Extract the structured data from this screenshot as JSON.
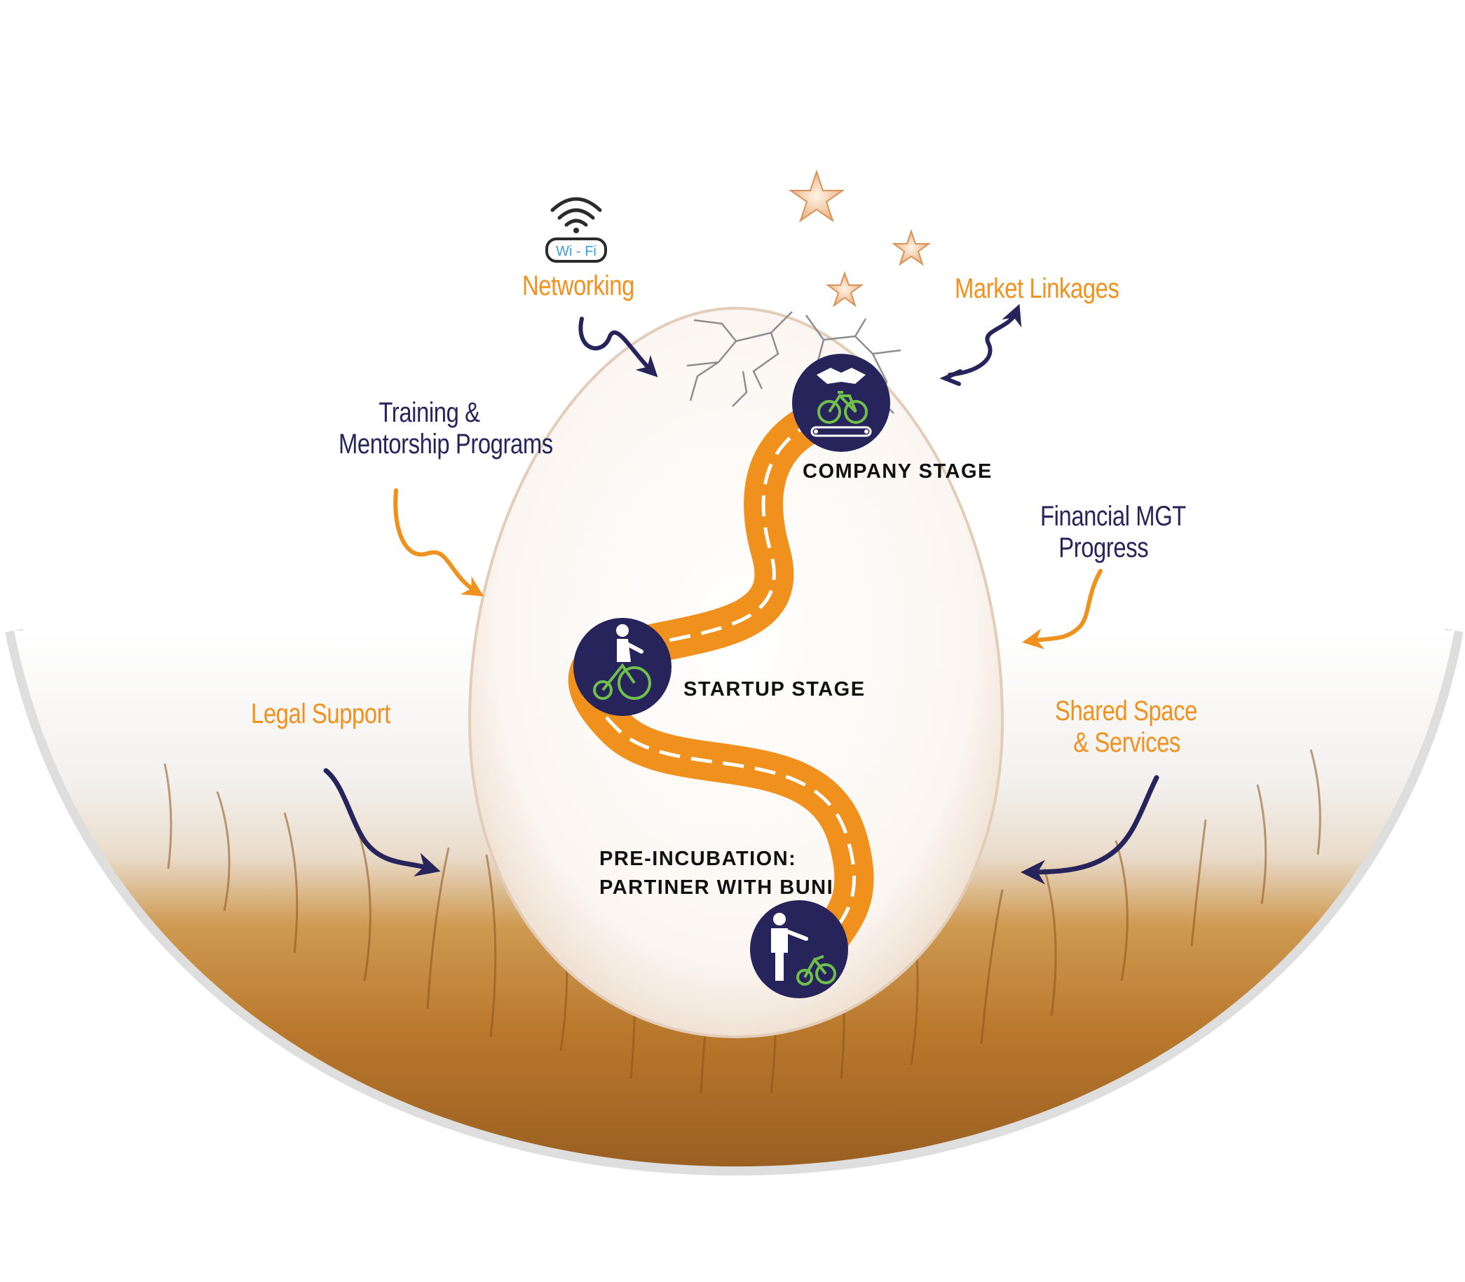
{
  "colors": {
    "navy": "#26245a",
    "orange": "#f0901d",
    "green": "#6fbf4a",
    "grass": "#c98a3c",
    "egg": "#fbf6f1",
    "star": "#f4c8a0"
  },
  "services": {
    "networking": "Networking",
    "wifi_label": "Wi - Fi",
    "market_linkages": "Market Linkages",
    "training_line1": "Training &",
    "training_line2": "Mentorship Programs",
    "financial_line1": "Financial MGT",
    "financial_line2": "Progress",
    "legal_support": "Legal Support",
    "shared_line1": "Shared Space",
    "shared_line2": "& Services"
  },
  "stages": {
    "company": "COMPANY STAGE",
    "startup": "STARTUP STAGE",
    "pre_line1": "PRE-INCUBATION:",
    "pre_line2": "PARTINER WITH BUNI"
  },
  "icons": {
    "wifi": "wifi-icon",
    "star": "star-icon",
    "handshake": "handshake-bicycle-icon",
    "cyclist": "cyclist-icon",
    "person_bicycle": "person-with-bicycle-icon"
  }
}
